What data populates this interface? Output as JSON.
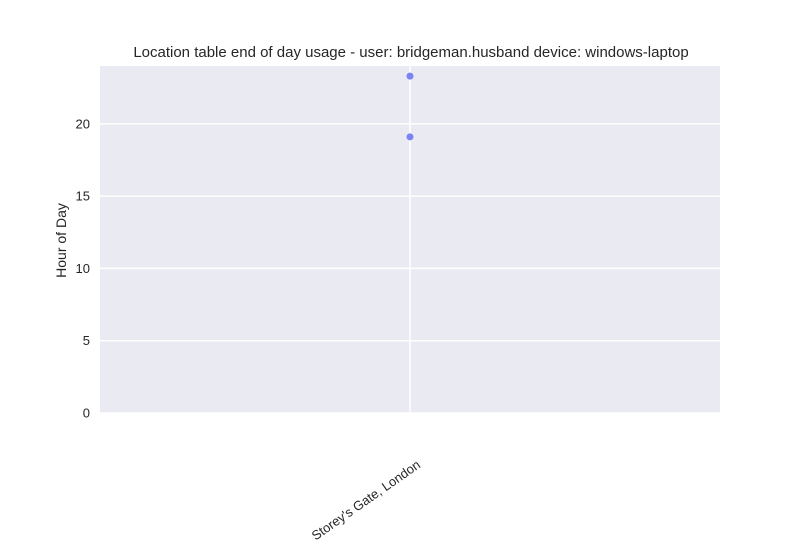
{
  "chart_data": {
    "type": "scatter",
    "title": "Location table end of day usage -  user: bridgeman.husband device: windows-laptop",
    "xlabel": "",
    "ylabel": "Hour of Day",
    "categories": [
      "Storey's Gate, London"
    ],
    "points": [
      {
        "x": "Storey's Gate, London",
        "y": 23.3
      },
      {
        "x": "Storey's Gate, London",
        "y": 19.1
      }
    ],
    "ylim": [
      0,
      24
    ],
    "yticks": [
      0,
      5,
      10,
      15,
      20
    ],
    "grid": true,
    "colors": {
      "background": "#eaeaf2",
      "grid": "#ffffff",
      "point": "#7b84f5"
    }
  }
}
